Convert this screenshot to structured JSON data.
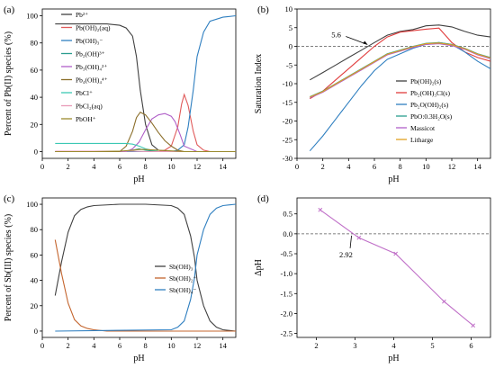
{
  "chart_data": [
    {
      "panel": "(a)",
      "type": "line",
      "xlabel": "pH",
      "ylabel": "Percent of Pb(II) species (%)",
      "xlim": [
        0,
        15
      ],
      "ylim": [
        -5,
        105
      ],
      "xticks": [
        0,
        2,
        4,
        6,
        8,
        10,
        12,
        14
      ],
      "yticks": [
        0,
        20,
        40,
        60,
        80,
        100
      ],
      "legend_position": "upper-left",
      "series": [
        {
          "name": "Pb²⁺",
          "color": "#404040",
          "x": [
            1,
            2,
            3,
            4,
            5,
            6,
            6.5,
            7,
            7.3,
            7.6,
            8,
            8.5,
            9,
            10,
            11,
            12,
            13,
            14,
            15
          ],
          "y": [
            94,
            94,
            94,
            94,
            94,
            93,
            91,
            85,
            70,
            45,
            20,
            5,
            1,
            0,
            0,
            0,
            0,
            0,
            0
          ]
        },
        {
          "name": "Pb(OH)₂(aq)",
          "color": "#e05a5a",
          "x": [
            1,
            6,
            9,
            9.5,
            10,
            10.5,
            10.8,
            11,
            11.3,
            11.7,
            12,
            12.5,
            13,
            15
          ],
          "y": [
            0,
            0,
            0,
            1,
            4,
            18,
            35,
            42,
            34,
            15,
            5,
            1,
            0,
            0
          ]
        },
        {
          "name": "Pb(OH)₃⁻",
          "color": "#2f7fc0",
          "x": [
            1,
            9,
            10,
            10.5,
            11,
            11.3,
            11.7,
            12,
            12.5,
            13,
            14,
            15
          ],
          "y": [
            0,
            0,
            0,
            1,
            5,
            18,
            45,
            70,
            88,
            96,
            99,
            100
          ]
        },
        {
          "name": "Pb₂(OH)³⁺",
          "color": "#2a9d8f",
          "x": [
            1,
            6,
            7,
            7.5,
            8,
            9,
            15
          ],
          "y": [
            0,
            0,
            1,
            2,
            1,
            0,
            0
          ]
        },
        {
          "name": "Pb₃(OH)₄²⁺",
          "color": "#b05fc8",
          "x": [
            1,
            6.5,
            7,
            7.5,
            8,
            8.5,
            9,
            9.5,
            10,
            10.3,
            10.7,
            11,
            12,
            15
          ],
          "y": [
            0,
            0,
            2,
            7,
            16,
            24,
            27,
            28,
            26,
            22,
            12,
            4,
            0,
            0
          ]
        },
        {
          "name": "Pb₄(OH)₄⁴⁺",
          "color": "#8b6e2a",
          "x": [
            1,
            6,
            6.5,
            7,
            7.3,
            7.6,
            8,
            8.5,
            9,
            9.5,
            10,
            10.5,
            11,
            12,
            15
          ],
          "y": [
            0,
            0,
            4,
            15,
            25,
            29,
            27,
            21,
            14,
            8,
            4,
            1,
            0,
            0,
            0
          ]
        },
        {
          "name": "PbCl⁺",
          "color": "#3cc8b4",
          "x": [
            1,
            2,
            3,
            4,
            5,
            6,
            6.5,
            7,
            7.5,
            8,
            8.5,
            9,
            15
          ],
          "y": [
            6,
            6,
            6,
            6,
            6,
            6,
            6,
            5.5,
            4,
            2,
            1,
            0,
            0
          ]
        },
        {
          "name": "PbCl₂(aq)",
          "color": "#e89ab8",
          "x": [
            1,
            7,
            8,
            15
          ],
          "y": [
            0.3,
            0.3,
            0,
            0
          ]
        },
        {
          "name": "PbOH⁺",
          "color": "#9a8a2e",
          "x": [
            1,
            4,
            6,
            7,
            7.5,
            8,
            9,
            10,
            11,
            15
          ],
          "y": [
            0,
            0,
            0.3,
            1,
            1.5,
            1.5,
            1,
            0.5,
            0,
            0
          ]
        }
      ]
    },
    {
      "panel": "(b)",
      "type": "line",
      "xlabel": "pH",
      "ylabel": "Saturation Index",
      "xlim": [
        0,
        15
      ],
      "ylim": [
        -30,
        10
      ],
      "xticks": [
        0,
        2,
        4,
        6,
        8,
        10,
        12,
        14
      ],
      "yticks": [
        10,
        5,
        0,
        -5,
        -10,
        -15,
        -20,
        -25,
        -30
      ],
      "legend_position": "lower-right",
      "annotations": [
        {
          "text": "5.6",
          "x": 5.6,
          "y": 0
        }
      ],
      "series": [
        {
          "name": "Pb(OH)₂(s)",
          "color": "#404040",
          "x": [
            1,
            2,
            3,
            4,
            5,
            6,
            7,
            8,
            9,
            10,
            11,
            12,
            13,
            14,
            15
          ],
          "y": [
            -9,
            -7,
            -5,
            -3,
            -1,
            1,
            3,
            4,
            4.5,
            5.5,
            5.7,
            5.2,
            4,
            3,
            2.5
          ]
        },
        {
          "name": "Pb₂(OH)₃Cl(s)",
          "color": "#e03c3c",
          "x": [
            1,
            2,
            3,
            4,
            5,
            6,
            7,
            8,
            9,
            10,
            11,
            11.5,
            12,
            13,
            14,
            15
          ],
          "y": [
            -14,
            -12,
            -9,
            -6,
            -3,
            0,
            2.5,
            3.8,
            4.2,
            4.6,
            4.9,
            3,
            1,
            -1.5,
            -3,
            -4
          ]
        },
        {
          "name": "Pb₂O(OH)₂(s)",
          "color": "#2f7fc0",
          "x": [
            1,
            2,
            3,
            4,
            5,
            6,
            7,
            8,
            9,
            10,
            11,
            12,
            13,
            14,
            15
          ],
          "y": [
            -28,
            -24,
            -19.5,
            -15,
            -10.5,
            -6.5,
            -3.5,
            -2,
            -0.5,
            0.5,
            1,
            0.5,
            -1.5,
            -4,
            -6
          ]
        },
        {
          "name": "PbO:0.3H₂O(s)",
          "color": "#2a9d8f",
          "x": [
            1,
            2,
            3,
            4,
            5,
            6,
            7,
            8,
            9,
            10,
            11,
            12,
            13,
            14,
            15
          ],
          "y": [
            -13.5,
            -12,
            -10,
            -8,
            -6,
            -4,
            -2,
            -1,
            0,
            0.8,
            1,
            0.5,
            -0.5,
            -2,
            -3
          ]
        },
        {
          "name": "Massicot",
          "color": "#b05fc8",
          "x": [
            1,
            2,
            3,
            4,
            5,
            6,
            7,
            8,
            9,
            10,
            11,
            12,
            13,
            14,
            15
          ],
          "y": [
            -13.8,
            -12.3,
            -10.3,
            -8.3,
            -6.3,
            -4.3,
            -2.3,
            -1.3,
            -0.3,
            0.5,
            0.7,
            0.2,
            -0.8,
            -2.3,
            -3.3
          ]
        },
        {
          "name": "Litharge",
          "color": "#e0a020",
          "x": [
            1,
            2,
            3,
            4,
            5,
            6,
            7,
            8,
            9,
            10,
            11,
            12,
            13,
            14,
            15
          ],
          "y": [
            -13.6,
            -12.1,
            -10.1,
            -8.1,
            -6.1,
            -4.1,
            -2.1,
            -1.1,
            -0.1,
            0.7,
            0.9,
            0.4,
            -0.6,
            -2.1,
            -3.1
          ]
        }
      ]
    },
    {
      "panel": "(c)",
      "type": "line",
      "xlabel": "pH",
      "ylabel": "Percent of Sb(III) species (%)",
      "xlim": [
        0,
        15
      ],
      "ylim": [
        -5,
        105
      ],
      "xticks": [
        0,
        2,
        4,
        6,
        8,
        10,
        12,
        14
      ],
      "yticks": [
        0,
        20,
        40,
        60,
        80,
        100
      ],
      "legend_position": "center-right",
      "series": [
        {
          "name": "Sb(OH)₃",
          "color": "#404040",
          "x": [
            1,
            1.5,
            2,
            2.5,
            3,
            3.5,
            4,
            6,
            8,
            10,
            10.5,
            11,
            11.5,
            11.8,
            12,
            12.5,
            13,
            13.5,
            14,
            15
          ],
          "y": [
            28,
            55,
            78,
            91,
            96,
            98,
            99,
            100,
            100,
            99,
            97,
            92,
            75,
            58,
            40,
            20,
            8,
            3,
            1,
            0
          ]
        },
        {
          "name": "Sb(OH)₂⁺",
          "color": "#c4652e",
          "x": [
            1,
            1.5,
            2,
            2.5,
            3,
            3.5,
            4,
            5,
            15
          ],
          "y": [
            72,
            45,
            22,
            9,
            4,
            2,
            1,
            0,
            0
          ]
        },
        {
          "name": "Sb(OH)₄⁻",
          "color": "#2f7fc0",
          "x": [
            1,
            10,
            10.5,
            11,
            11.5,
            11.8,
            12,
            12.5,
            13,
            13.5,
            14,
            15
          ],
          "y": [
            0,
            1,
            3,
            8,
            25,
            42,
            60,
            80,
            92,
            97,
            99,
            100
          ]
        }
      ]
    },
    {
      "panel": "(d)",
      "type": "line",
      "xlabel": "pH",
      "ylabel": "ΔpH",
      "xlim": [
        1.5,
        6.5
      ],
      "ylim": [
        -2.6,
        0.9
      ],
      "xticks": [
        2,
        3,
        4,
        5,
        6
      ],
      "yticks": [
        0.5,
        0.0,
        -0.5,
        -1.0,
        -1.5,
        -2.0,
        -2.5
      ],
      "annotations": [
        {
          "text": "2.92",
          "x": 2.92,
          "y": 0
        }
      ],
      "series": [
        {
          "name": "",
          "color": "#c070c8",
          "x": [
            2.1,
            3.1,
            4.05,
            5.3,
            6.05
          ],
          "y": [
            0.6,
            -0.1,
            -0.5,
            -1.7,
            -2.3
          ]
        }
      ]
    }
  ]
}
